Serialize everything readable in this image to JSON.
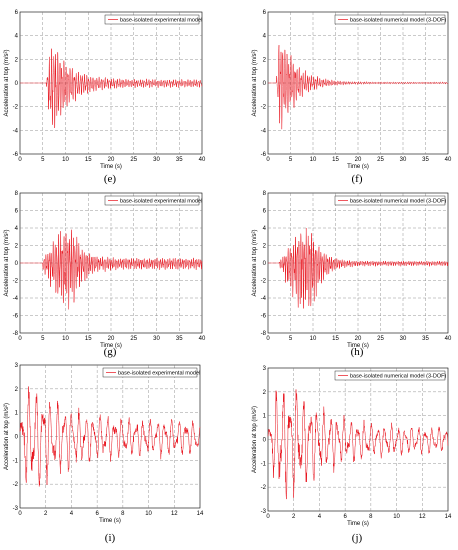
{
  "chart_data": [
    {
      "type": "line",
      "panel_label": "(e)",
      "legend": "base-isolated experimental model",
      "xlabel": "Time (s)",
      "ylabel": "Acceleration at top (m/s²)",
      "xlim": [
        0,
        40
      ],
      "ylim": [
        -6,
        6
      ],
      "xticks": [
        0,
        5,
        10,
        15,
        20,
        25,
        30,
        35,
        40
      ],
      "yticks": [
        -6,
        -4,
        -2,
        0,
        2,
        4,
        6
      ],
      "grid": true,
      "legend_position": "top-right",
      "color": "#e8101a",
      "signal": {
        "onset": 5.8,
        "duration": 34.2,
        "peak_time": 7.3,
        "peak_pos": 2.9,
        "peak_neg": -3.8,
        "rise": 1.0,
        "decay": 3.8,
        "freq": 2.2,
        "floor": 0.08
      }
    },
    {
      "type": "line",
      "panel_label": "(f)",
      "legend": "base-isolated numerical model (3-DOF)",
      "xlabel": "Time (s)",
      "ylabel": "Acceleration at top (m/s²)",
      "xlim": [
        0,
        40
      ],
      "ylim": [
        -6,
        6
      ],
      "xticks": [
        0,
        5,
        10,
        15,
        20,
        25,
        30,
        35,
        40
      ],
      "yticks": [
        -6,
        -4,
        -2,
        0,
        2,
        4,
        6
      ],
      "grid": true,
      "legend_position": "top-right",
      "color": "#e8101a",
      "signal": {
        "onset": 1.8,
        "duration": 38.2,
        "peak_time": 3.0,
        "peak_pos": 3.2,
        "peak_neg": -3.9,
        "rise": 0.8,
        "decay": 3.5,
        "freq": 2.2,
        "floor": 0.02
      }
    },
    {
      "type": "line",
      "panel_label": "(g)",
      "legend": "base-isolated experimental model",
      "xlabel": "Time (s)",
      "ylabel": "Acceleration at top (m/s²)",
      "xlim": [
        0,
        40
      ],
      "ylim": [
        -8,
        8
      ],
      "xticks": [
        0,
        5,
        10,
        15,
        20,
        25,
        30,
        35,
        40
      ],
      "yticks": [
        -8,
        -6,
        -4,
        -2,
        0,
        2,
        4,
        6,
        8
      ],
      "grid": true,
      "legend_position": "top-right",
      "color": "#e8101a",
      "signal": {
        "onset": 5.0,
        "duration": 35.0,
        "peak_time": 11.8,
        "peak_pos": 3.8,
        "peak_neg": -5.3,
        "rise": 4.0,
        "decay": 2.2,
        "freq": 2.5,
        "floor": 0.15
      }
    },
    {
      "type": "line",
      "panel_label": "(h)",
      "legend": "base-isolated numerical model (3-DOF)",
      "xlabel": "Time (s)",
      "ylabel": "Acceleration at top (m/s²)",
      "xlim": [
        0,
        40
      ],
      "ylim": [
        -8,
        8
      ],
      "xticks": [
        0,
        5,
        10,
        15,
        20,
        25,
        30,
        35,
        40
      ],
      "yticks": [
        -8,
        -6,
        -4,
        -2,
        0,
        2,
        4,
        6,
        8
      ],
      "grid": true,
      "legend_position": "top-right",
      "color": "#e8101a",
      "signal": {
        "onset": 2.5,
        "duration": 37.5,
        "peak_time": 9.8,
        "peak_pos": 4.0,
        "peak_neg": -5.2,
        "rise": 4.5,
        "decay": 2.3,
        "freq": 2.5,
        "floor": 0.06
      }
    },
    {
      "type": "line",
      "panel_label": "(i)",
      "legend": "base-isolated experimental model",
      "xlabel": "Time (s)",
      "ylabel": "Acceleration at top (m/s²)",
      "xlim": [
        0,
        14
      ],
      "ylim": [
        -3,
        3
      ],
      "xticks": [
        0,
        2,
        4,
        6,
        8,
        10,
        12,
        14
      ],
      "yticks": [
        -3,
        -2,
        -1,
        0,
        1,
        2,
        3
      ],
      "grid": true,
      "legend_position": "top-right",
      "color": "#e8101a",
      "signal": {
        "onset": 0,
        "duration": 14,
        "peak_time": 1.2,
        "peak_pos": 2.1,
        "peak_neg": -2.1,
        "rise": 0.5,
        "decay": 3.0,
        "freq": 1.8,
        "floor": 0.32
      }
    },
    {
      "type": "line",
      "panel_label": "(j)",
      "legend": "base-isolated numerical model (3-DOF)",
      "xlabel": "Time (s)",
      "ylabel": "Acceleration at top (m/s²)",
      "xlim": [
        0,
        14
      ],
      "ylim": [
        -3,
        3
      ],
      "xticks": [
        0,
        2,
        4,
        6,
        8,
        10,
        12,
        14
      ],
      "yticks": [
        -3,
        -2,
        -1,
        0,
        1,
        2,
        3
      ],
      "grid": true,
      "legend_position": "top-right",
      "color": "#e8101a",
      "signal": {
        "onset": 0,
        "duration": 14,
        "peak_time": 2.0,
        "peak_pos": 2.1,
        "peak_neg": -2.5,
        "rise": 0.8,
        "decay": 2.8,
        "freq": 1.9,
        "floor": 0.22
      }
    }
  ]
}
